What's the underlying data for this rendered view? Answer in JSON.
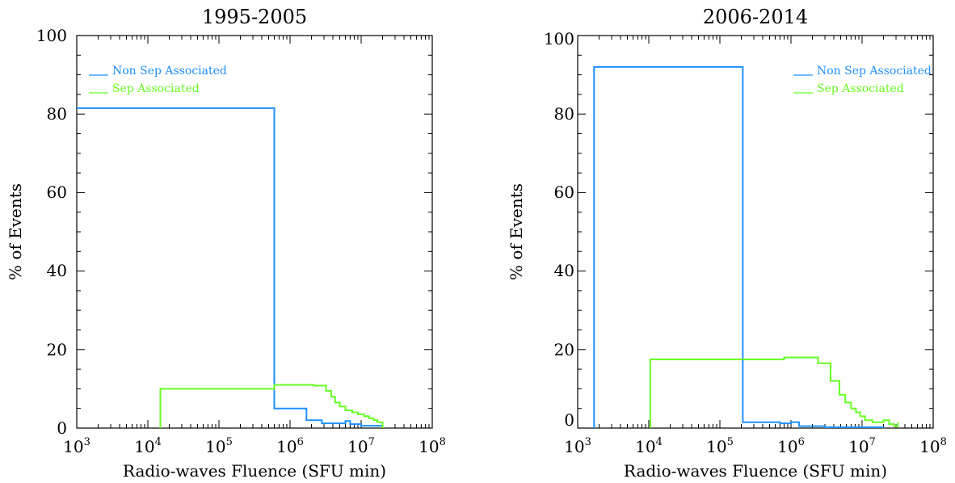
{
  "chart_data": [
    {
      "type": "step",
      "title": "1995-2005",
      "xlabel": "Radio-waves Fluence (SFU min)",
      "ylabel": "% of Events",
      "xscale": "log",
      "xlim": [
        1000,
        100000000
      ],
      "ylim": [
        0,
        100
      ],
      "x_ticks": [
        1000,
        10000,
        100000,
        1000000,
        10000000,
        100000000
      ],
      "x_tick_labels": [
        {
          "base": "10",
          "exp": "3"
        },
        {
          "base": "10",
          "exp": "4"
        },
        {
          "base": "10",
          "exp": "5"
        },
        {
          "base": "10",
          "exp": "6"
        },
        {
          "base": "10",
          "exp": "7"
        },
        {
          "base": "10",
          "exp": "8"
        }
      ],
      "y_ticks": [
        0,
        20,
        40,
        60,
        80,
        100
      ],
      "y_tick_labels": [
        "0",
        "20",
        "40",
        "60",
        "80",
        "100"
      ],
      "legend_position": "top-left",
      "series": [
        {
          "name": "Non Sep Associated",
          "color": "#1f8fff",
          "points": [
            [
              1000,
              81.5
            ],
            [
              600000,
              81.5
            ],
            [
              600000,
              5
            ],
            [
              1700000,
              5
            ],
            [
              1700000,
              2
            ],
            [
              2800000,
              2
            ],
            [
              2800000,
              1.2
            ],
            [
              6000000,
              1.2
            ],
            [
              6000000,
              1.8
            ],
            [
              7000000,
              1.8
            ],
            [
              7000000,
              1
            ],
            [
              10000000,
              1
            ],
            [
              10000000,
              0.6
            ],
            [
              20000000,
              0.6
            ],
            [
              20000000,
              0
            ]
          ]
        },
        {
          "name": "Sep Associated",
          "color": "#66ff22",
          "points": [
            [
              15000,
              0
            ],
            [
              15000,
              10
            ],
            [
              600000,
              10
            ],
            [
              600000,
              11
            ],
            [
              2200000,
              11
            ],
            [
              2200000,
              10.8
            ],
            [
              3200000,
              10.8
            ],
            [
              3200000,
              9.5
            ],
            [
              3800000,
              9.5
            ],
            [
              3800000,
              8
            ],
            [
              4300000,
              8
            ],
            [
              4300000,
              6.5
            ],
            [
              5000000,
              6.5
            ],
            [
              5000000,
              5.5
            ],
            [
              6000000,
              5.5
            ],
            [
              6000000,
              4.5
            ],
            [
              7500000,
              4.5
            ],
            [
              7500000,
              4
            ],
            [
              9000000,
              4
            ],
            [
              9000000,
              3.5
            ],
            [
              11000000,
              3.5
            ],
            [
              11000000,
              3
            ],
            [
              13000000,
              3
            ],
            [
              13000000,
              2.5
            ],
            [
              15000000,
              2.5
            ],
            [
              15000000,
              2
            ],
            [
              17000000,
              2
            ],
            [
              17000000,
              1.5
            ],
            [
              20000000,
              1.5
            ],
            [
              20000000,
              0
            ]
          ]
        }
      ]
    },
    {
      "type": "step",
      "title": "2006-2014",
      "xlabel": "Radio-waves Fluence (SFU min)",
      "ylabel": "% of Events",
      "xscale": "log",
      "xlim": [
        1000,
        100000000
      ],
      "ylim": [
        0,
        100
      ],
      "x_ticks": [
        1000,
        10000,
        100000,
        1000000,
        10000000,
        100000000
      ],
      "x_tick_labels": [
        {
          "base": "10",
          "exp": "3"
        },
        {
          "base": "10",
          "exp": "4"
        },
        {
          "base": "10",
          "exp": "5"
        },
        {
          "base": "10",
          "exp": "6"
        },
        {
          "base": "10",
          "exp": "7"
        },
        {
          "base": "10",
          "exp": "8"
        }
      ],
      "y_ticks": [
        0,
        20,
        40,
        60,
        80,
        100
      ],
      "y_tick_labels": [
        "0",
        "20",
        "40",
        "60",
        "80",
        "100"
      ],
      "legend_position": "top-right",
      "series": [
        {
          "name": "Non Sep Associated",
          "color": "#1f8fff",
          "points": [
            [
              1700,
              0
            ],
            [
              1700,
              92
            ],
            [
              210000,
              92
            ],
            [
              210000,
              1.5
            ],
            [
              700000,
              1.5
            ],
            [
              700000,
              1.2
            ],
            [
              1000000,
              1.2
            ],
            [
              1000000,
              1.5
            ],
            [
              1300000,
              1.5
            ],
            [
              1300000,
              0.5
            ],
            [
              3000000,
              0.5
            ],
            [
              3000000,
              0.2
            ],
            [
              20000000,
              0.2
            ],
            [
              20000000,
              0
            ]
          ]
        },
        {
          "name": "Sep Associated",
          "color": "#66ff22",
          "points": [
            [
              10500,
              0
            ],
            [
              10500,
              17.5
            ],
            [
              800000,
              17.5
            ],
            [
              800000,
              18
            ],
            [
              2400000,
              18
            ],
            [
              2400000,
              16.5
            ],
            [
              3600000,
              16.5
            ],
            [
              3600000,
              12
            ],
            [
              4800000,
              12
            ],
            [
              4800000,
              8.5
            ],
            [
              5800000,
              8.5
            ],
            [
              5800000,
              6.5
            ],
            [
              7000000,
              6.5
            ],
            [
              7000000,
              5
            ],
            [
              8200000,
              5
            ],
            [
              8200000,
              4
            ],
            [
              9400000,
              4
            ],
            [
              9400000,
              3
            ],
            [
              11000000,
              3
            ],
            [
              11000000,
              2
            ],
            [
              14000000,
              2
            ],
            [
              14000000,
              1.5
            ],
            [
              20000000,
              1.5
            ],
            [
              20000000,
              2
            ],
            [
              24000000,
              2
            ],
            [
              24000000,
              1
            ],
            [
              28000000,
              1
            ],
            [
              28000000,
              0.5
            ],
            [
              32000000,
              0.5
            ],
            [
              32000000,
              1.5
            ]
          ]
        }
      ]
    }
  ]
}
